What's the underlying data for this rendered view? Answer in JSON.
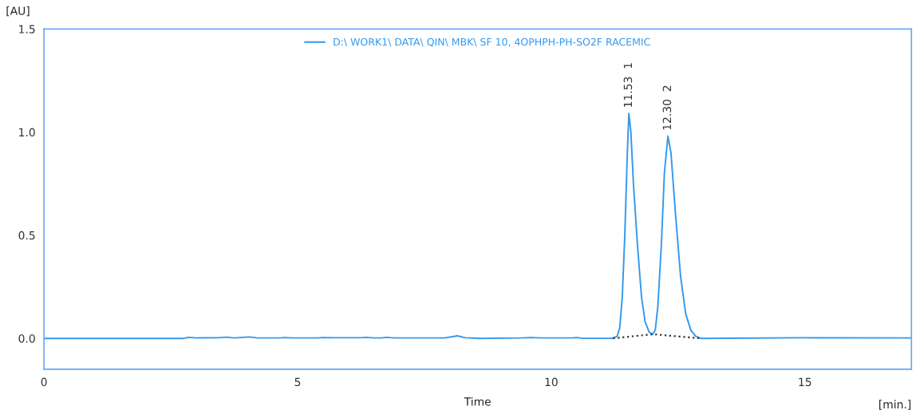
{
  "chart_data": {
    "type": "line",
    "xlabel": "Time",
    "ylabel": "[AU]",
    "xlim": [
      0,
      17.1
    ],
    "ylim": [
      -0.15,
      1.5
    ],
    "xticks": [
      0,
      5,
      10,
      15
    ],
    "yticks": [
      {
        "value": 0,
        "label": "0.0"
      },
      {
        "value": 0.5,
        "label": "0.5"
      },
      {
        "value": 1,
        "label": "1.0"
      },
      {
        "value": 1.5,
        "label": "1.5"
      }
    ],
    "grid": false,
    "legend": "top",
    "marker": "none",
    "annotations": [
      {
        "text": "11.53  1",
        "x": 11.53,
        "y": 1.09
      },
      {
        "text": "12.30  2",
        "x": 12.3,
        "y": 0.98
      },
      "[min.]"
    ],
    "series": [
      {
        "name": "D:\\ WORK1\\ DATA\\ QIN\\ MBK\\ SF 10, 4OPHPH-PH-SO2F RACEMIC",
        "color": "#3399ee",
        "line_style": "solid",
        "x": [
          0,
          2.75,
          2.85,
          3.0,
          3.45,
          3.6,
          3.75,
          4.05,
          4.2,
          4.65,
          4.75,
          4.9,
          5.4,
          5.5,
          5.7,
          6.25,
          6.35,
          6.5,
          6.65,
          6.75,
          6.9,
          7.9,
          8.15,
          8.3,
          8.6,
          9.4,
          9.6,
          9.8,
          10.4,
          10.5,
          10.6,
          11.2,
          11.3,
          11.35,
          11.4,
          11.45,
          11.5,
          11.53,
          11.57,
          11.62,
          11.7,
          11.78,
          11.85,
          11.93,
          12.0,
          12.05,
          12.1,
          12.17,
          12.23,
          12.3,
          12.36,
          12.45,
          12.55,
          12.65,
          12.75,
          12.85,
          12.95,
          15,
          17.1
        ],
        "values": [
          0,
          0,
          0.005,
          0.002,
          0.003,
          0.006,
          0.002,
          0.007,
          0.002,
          0.002,
          0.004,
          0.002,
          0.002,
          0.004,
          0.003,
          0.003,
          0.005,
          0.002,
          0.002,
          0.005,
          0.002,
          0.002,
          0.012,
          0.003,
          0,
          0.002,
          0.004,
          0.002,
          0.002,
          0.004,
          0.001,
          0,
          0.01,
          0.05,
          0.2,
          0.5,
          0.9,
          1.09,
          1.0,
          0.75,
          0.45,
          0.2,
          0.08,
          0.03,
          0.02,
          0.04,
          0.15,
          0.45,
          0.8,
          0.98,
          0.9,
          0.6,
          0.3,
          0.12,
          0.04,
          0.01,
          0,
          0.003,
          0.002
        ]
      },
      {
        "color": "#333333",
        "line_style": "dotted",
        "x": [
          11.22,
          12.0,
          12.95
        ],
        "values": [
          0,
          0.02,
          0
        ]
      }
    ]
  }
}
